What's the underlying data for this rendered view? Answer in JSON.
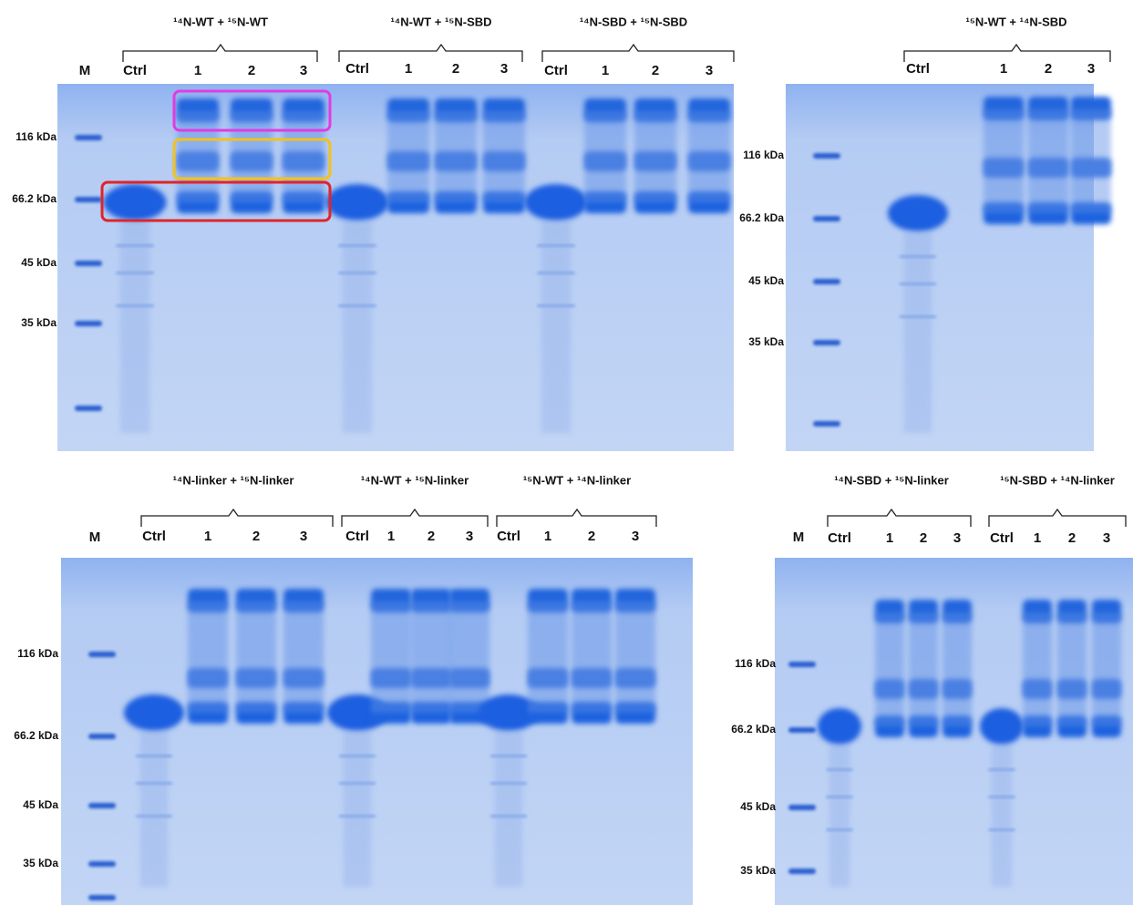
{
  "panels": [
    {
      "marker_lane": "M",
      "markers": [
        "116 kDa",
        "66.2 kDa",
        "45 kDa",
        "35 kDa"
      ],
      "groups": [
        {
          "title": "¹⁴N-WT + ¹⁵N-WT",
          "lanes": [
            "Ctrl",
            "1",
            "2",
            "3"
          ]
        },
        {
          "title": "¹⁴N-WT + ¹⁵N-SBD",
          "lanes": [
            "Ctrl",
            "1",
            "2",
            "3"
          ]
        },
        {
          "title": "¹⁴N-SBD + ¹⁵N-SBD",
          "lanes": [
            "Ctrl",
            "1",
            "2",
            "3"
          ]
        }
      ]
    },
    {
      "markers": [
        "116 kDa",
        "66.2 kDa",
        "45 kDa",
        "35 kDa"
      ],
      "groups": [
        {
          "title": "¹⁵N-WT + ¹⁴N-SBD",
          "lanes": [
            "Ctrl",
            "1",
            "2",
            "3"
          ]
        }
      ]
    },
    {
      "marker_lane": "M",
      "markers": [
        "116 kDa",
        "66.2 kDa",
        "45 kDa",
        "35 kDa"
      ],
      "groups": [
        {
          "title": "¹⁴N-linker + ¹⁵N-linker",
          "lanes": [
            "Ctrl",
            "1",
            "2",
            "3"
          ]
        },
        {
          "title": "¹⁴N-WT + ¹⁵N-linker",
          "lanes": [
            "Ctrl",
            "1",
            "2",
            "3"
          ]
        },
        {
          "title": "¹⁵N-WT + ¹⁴N-linker",
          "lanes": [
            "Ctrl",
            "1",
            "2",
            "3"
          ]
        }
      ]
    },
    {
      "marker_lane": "M",
      "markers": [
        "116 kDa",
        "66.2 kDa",
        "45 kDa",
        "35 kDa"
      ],
      "groups": [
        {
          "title": "¹⁴N-SBD + ¹⁵N-linker",
          "lanes": [
            "Ctrl",
            "1",
            "2",
            "3"
          ]
        },
        {
          "title": "¹⁵N-SBD + ¹⁴N-linker",
          "lanes": [
            "Ctrl",
            "1",
            "2",
            "3"
          ]
        }
      ]
    }
  ]
}
